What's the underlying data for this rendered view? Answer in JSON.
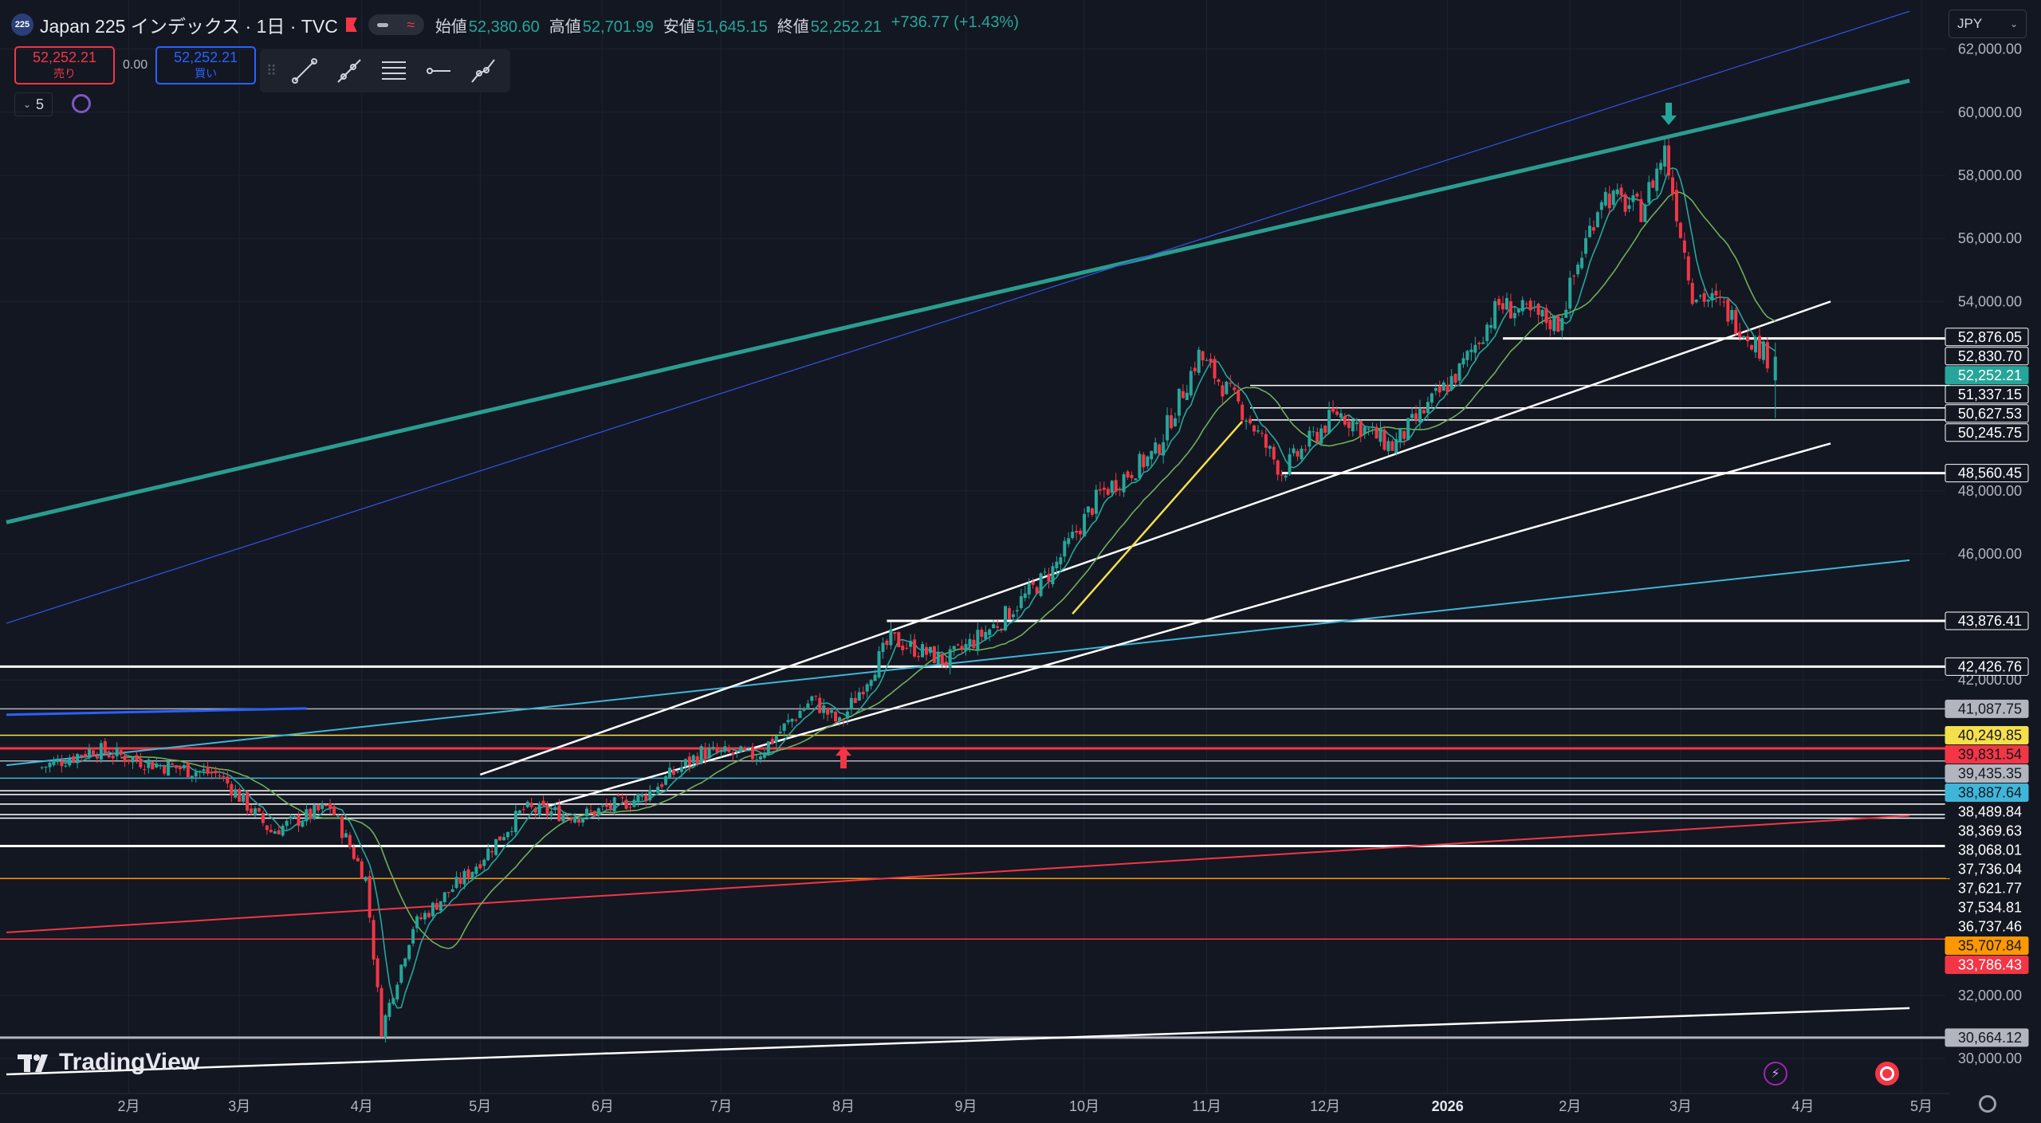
{
  "header": {
    "symbol_badge": "225",
    "title": "Japan 225 インデックス · 1日 · TVC",
    "ohlc": [
      {
        "label": "始値",
        "value": "52,380.60"
      },
      {
        "label": "高値",
        "value": "52,701.99"
      },
      {
        "label": "安値",
        "value": "51,645.15"
      },
      {
        "label": "終値",
        "value": "52,252.21"
      }
    ],
    "change": "+736.77 (+1.43%)"
  },
  "trade": {
    "sell_price": "52,252.21",
    "sell_label": "売り",
    "spread": "0.00",
    "buy_price": "52,252.21",
    "buy_label": "買い"
  },
  "toolbar": {
    "tools": [
      "trend-line-tool",
      "ray-tool",
      "fib-tool",
      "horizontal-ray-tool",
      "path-tool"
    ]
  },
  "interval": {
    "value": "5"
  },
  "currency": {
    "value": "JPY"
  },
  "brand": {
    "name": "TradingView"
  },
  "colors": {
    "up": "#26a69a",
    "down": "#f23645",
    "background": "#131722",
    "teal_trendline": "#2a9d8f"
  },
  "chart_data": {
    "type": "candlestick",
    "y_axis": {
      "range": [
        29600,
        62800
      ],
      "ticks": [
        "30,000.00",
        "32,000.00",
        "42,000.00",
        "46,000.00",
        "48,000.00",
        "54,000.00",
        "56,000.00",
        "58,000.00",
        "60,000.00",
        "62,000.00"
      ]
    },
    "x_axis": {
      "ticks": [
        {
          "label": "2月",
          "date": "2025-02-01"
        },
        {
          "label": "3月",
          "date": "2025-03-01"
        },
        {
          "label": "4月",
          "date": "2025-04-01"
        },
        {
          "label": "5月",
          "date": "2025-05-01"
        },
        {
          "label": "6月",
          "date": "2025-06-01"
        },
        {
          "label": "7月",
          "date": "2025-07-01"
        },
        {
          "label": "8月",
          "date": "2025-08-01"
        },
        {
          "label": "9月",
          "date": "2025-09-01"
        },
        {
          "label": "10月",
          "date": "2025-10-01"
        },
        {
          "label": "11月",
          "date": "2025-11-01"
        },
        {
          "label": "12月",
          "date": "2025-12-01"
        },
        {
          "label": "2026",
          "date": "2026-01-01"
        },
        {
          "label": "2月",
          "date": "2026-02-01"
        },
        {
          "label": "3月",
          "date": "2026-03-01"
        },
        {
          "label": "4月",
          "date": "2026-04-01"
        },
        {
          "label": "5月",
          "date": "2026-05-01"
        }
      ]
    },
    "price_path": [
      {
        "date": "2025-01-10",
        "close": 39200
      },
      {
        "date": "2025-01-24",
        "close": 39800
      },
      {
        "date": "2025-02-10",
        "close": 39300
      },
      {
        "date": "2025-02-25",
        "close": 39000
      },
      {
        "date": "2025-03-10",
        "close": 37200
      },
      {
        "date": "2025-03-25",
        "close": 38000
      },
      {
        "date": "2025-04-03",
        "close": 35700
      },
      {
        "date": "2025-04-07",
        "close": 30900
      },
      {
        "date": "2025-04-15",
        "close": 34200
      },
      {
        "date": "2025-04-30",
        "close": 36000
      },
      {
        "date": "2025-05-13",
        "close": 37900
      },
      {
        "date": "2025-05-28",
        "close": 37700
      },
      {
        "date": "2025-06-12",
        "close": 38300
      },
      {
        "date": "2025-06-27",
        "close": 39700
      },
      {
        "date": "2025-07-11",
        "close": 39600
      },
      {
        "date": "2025-07-25",
        "close": 41400
      },
      {
        "date": "2025-08-01",
        "close": 40600
      },
      {
        "date": "2025-08-14",
        "close": 43300
      },
      {
        "date": "2025-08-28",
        "close": 42600
      },
      {
        "date": "2025-09-10",
        "close": 43800
      },
      {
        "date": "2025-09-24",
        "close": 45500
      },
      {
        "date": "2025-10-06",
        "close": 47900
      },
      {
        "date": "2025-10-20",
        "close": 49200
      },
      {
        "date": "2025-10-31",
        "close": 52300
      },
      {
        "date": "2025-11-12",
        "close": 50400
      },
      {
        "date": "2025-11-21",
        "close": 48600
      },
      {
        "date": "2025-12-05",
        "close": 50500
      },
      {
        "date": "2025-12-19",
        "close": 49400
      },
      {
        "date": "2026-01-05",
        "close": 51800
      },
      {
        "date": "2026-01-15",
        "close": 53900
      },
      {
        "date": "2026-01-30",
        "close": 53300
      },
      {
        "date": "2026-02-10",
        "close": 57400
      },
      {
        "date": "2026-02-20",
        "close": 56900
      },
      {
        "date": "2026-02-26",
        "close": 58800
      },
      {
        "date": "2026-03-05",
        "close": 54300
      },
      {
        "date": "2026-03-12",
        "close": 53900
      },
      {
        "date": "2026-03-18",
        "close": 53100
      },
      {
        "date": "2026-03-24",
        "close": 52252
      }
    ],
    "price_labels": [
      {
        "value": 52876.05,
        "text": "52,876.05",
        "bg": "#131722",
        "fg": "#ffffff",
        "border": "#ffffff"
      },
      {
        "value": 52830.7,
        "text": "52,830.70",
        "bg": "#131722",
        "fg": "#ffffff",
        "border": "#ffffff"
      },
      {
        "value": 52252.21,
        "text": "52,252.21",
        "bg": "#26a69a",
        "fg": "#ffffff",
        "border": "#26a69a"
      },
      {
        "value": 51337.15,
        "text": "51,337.15",
        "bg": "#131722",
        "fg": "#ffffff",
        "border": "#ffffff"
      },
      {
        "value": 50627.53,
        "text": "50,627.53",
        "bg": "#131722",
        "fg": "#ffffff",
        "border": "#ffffff"
      },
      {
        "value": 50245.75,
        "text": "50,245.75",
        "bg": "#131722",
        "fg": "#ffffff",
        "border": "#ffffff"
      },
      {
        "value": 48560.45,
        "text": "48,560.45",
        "bg": "#131722",
        "fg": "#ffffff",
        "border": "#ffffff"
      },
      {
        "value": 43876.41,
        "text": "43,876.41",
        "bg": "#131722",
        "fg": "#ffffff",
        "border": "#ffffff"
      },
      {
        "value": 42426.76,
        "text": "42,426.76",
        "bg": "#131722",
        "fg": "#ffffff",
        "border": "#ffffff"
      },
      {
        "value": 41087.75,
        "text": "41,087.75",
        "bg": "#b2b5be",
        "fg": "#131722",
        "border": "#b2b5be"
      },
      {
        "value": 40249.85,
        "text": "40,249.85",
        "bg": "#f5e04b",
        "fg": "#131722",
        "border": "#f5e04b"
      },
      {
        "value": 39831.54,
        "text": "39,831.54",
        "bg": "#f23645",
        "fg": "#131722",
        "border": "#f23645"
      },
      {
        "value": 39435.35,
        "text": "39,435.35",
        "bg": "#b2b5be",
        "fg": "#131722",
        "border": "#b2b5be"
      },
      {
        "value": 38887.64,
        "text": "38,887.64",
        "bg": "#3fb6d9",
        "fg": "#131722",
        "border": "#3fb6d9"
      },
      {
        "value": 38489.84,
        "text": "38,489.84",
        "bg": "#131722",
        "fg": "#ffffff",
        "border": "#131722"
      },
      {
        "value": 38369.63,
        "text": "38,369.63",
        "bg": "#131722",
        "fg": "#ffffff",
        "border": "#131722"
      },
      {
        "value": 38068.01,
        "text": "38,068.01",
        "bg": "#131722",
        "fg": "#ffffff",
        "border": "#131722"
      },
      {
        "value": 37736.04,
        "text": "37,736.04",
        "bg": "#131722",
        "fg": "#ffffff",
        "border": "#131722"
      },
      {
        "value": 37621.77,
        "text": "37,621.77",
        "bg": "#131722",
        "fg": "#ffffff",
        "border": "#131722"
      },
      {
        "value": 37534.81,
        "text": "37,534.81",
        "bg": "#131722",
        "fg": "#ffffff",
        "border": "#131722"
      },
      {
        "value": 36737.46,
        "text": "36,737.46",
        "bg": "#131722",
        "fg": "#ffffff",
        "border": "#131722"
      },
      {
        "value": 35707.84,
        "text": "35,707.84",
        "bg": "#ff9800",
        "fg": "#131722",
        "border": "#ff9800"
      },
      {
        "value": 33786.43,
        "text": "33,786.43",
        "bg": "#f23645",
        "fg": "#ffffff",
        "border": "#f23645"
      },
      {
        "value": 30664.12,
        "text": "30,664.12",
        "bg": "#b2b5be",
        "fg": "#131722",
        "border": "#b2b5be"
      }
    ],
    "horizontal_levels": [
      {
        "value": 52830.7,
        "color": "#ffffff",
        "start": "2026-01-15",
        "thick": true
      },
      {
        "value": 51337.15,
        "color": "#ffffff",
        "start": "2025-11-12"
      },
      {
        "value": 50627.53,
        "color": "#ffffff",
        "start": "2025-11-12"
      },
      {
        "value": 50245.75,
        "color": "#ffffff",
        "start": "2025-11-12"
      },
      {
        "value": 48560.45,
        "color": "#ffffff",
        "start": "2025-11-20",
        "thick": true
      },
      {
        "value": 43876.41,
        "color": "#ffffff",
        "start": "2025-08-12",
        "thick": true
      },
      {
        "value": 42426.76,
        "color": "#ffffff",
        "thick": true
      },
      {
        "value": 41087.75,
        "color": "#b2b5be"
      },
      {
        "value": 40249.85,
        "color": "#f5e04b"
      },
      {
        "value": 39831.54,
        "color": "#f23645",
        "thick": true
      },
      {
        "value": 39435.35,
        "color": "#b2b5be"
      },
      {
        "value": 38887.64,
        "color": "#3fb6d9"
      },
      {
        "value": 38489.84,
        "color": "#ffffff"
      },
      {
        "value": 38369.63,
        "color": "#ffffff"
      },
      {
        "value": 38068.01,
        "color": "#ffffff"
      },
      {
        "value": 37736.04,
        "color": "#ffffff"
      },
      {
        "value": 37621.77,
        "color": "#ffffff"
      },
      {
        "value": 36737.46,
        "color": "#ffffff",
        "thick": true
      },
      {
        "value": 35707.84,
        "color": "#ff9800"
      },
      {
        "value": 33786.43,
        "color": "#f23645"
      },
      {
        "value": 30664.12,
        "color": "#b2b5be",
        "thick": true
      }
    ],
    "trendlines": [
      {
        "from": [
          "2025-01-01",
          47000
        ],
        "to": [
          "2026-04-28",
          61000
        ],
        "color": "#2a9d8f",
        "width": 5
      },
      {
        "from": [
          "2025-01-01",
          43800
        ],
        "to": [
          "2026-04-28",
          63200
        ],
        "color": "#3050d8",
        "width": 1.3
      },
      {
        "from": [
          "2025-01-01",
          39300
        ],
        "to": [
          "2026-04-28",
          45800
        ],
        "color": "#3fb6d9",
        "width": 2
      },
      {
        "from": [
          "2025-01-01",
          34000
        ],
        "to": [
          "2026-04-28",
          37700
        ],
        "color": "#f23645",
        "width": 2
      },
      {
        "from": [
          "2025-01-01",
          29500
        ],
        "to": [
          "2026-04-28",
          31600
        ],
        "color": "#ffffff",
        "width": 2.5
      },
      {
        "from": [
          "2025-05-01",
          39000
        ],
        "to": [
          "2026-04-08",
          54000
        ],
        "color": "#ffffff",
        "width": 2.5
      },
      {
        "from": [
          "2025-05-18",
          38000
        ],
        "to": [
          "2026-04-08",
          49500
        ],
        "color": "#ffffff",
        "width": 2.5
      },
      {
        "from": [
          "2025-01-01",
          40900
        ],
        "to": [
          "2025-03-18",
          41100
        ],
        "color": "#2962ff",
        "width": 3
      },
      {
        "from": [
          "2025-09-28",
          44100
        ],
        "to": [
          "2025-11-10",
          50200
        ],
        "color": "#f5e04b",
        "width": 2.5
      }
    ],
    "markers": [
      {
        "type": "arrow-up",
        "date": "2025-08-01",
        "value": 39500,
        "color": "#f23645"
      },
      {
        "type": "arrow-down",
        "date": "2026-02-26",
        "value": 60000,
        "color": "#26a69a"
      }
    ]
  }
}
